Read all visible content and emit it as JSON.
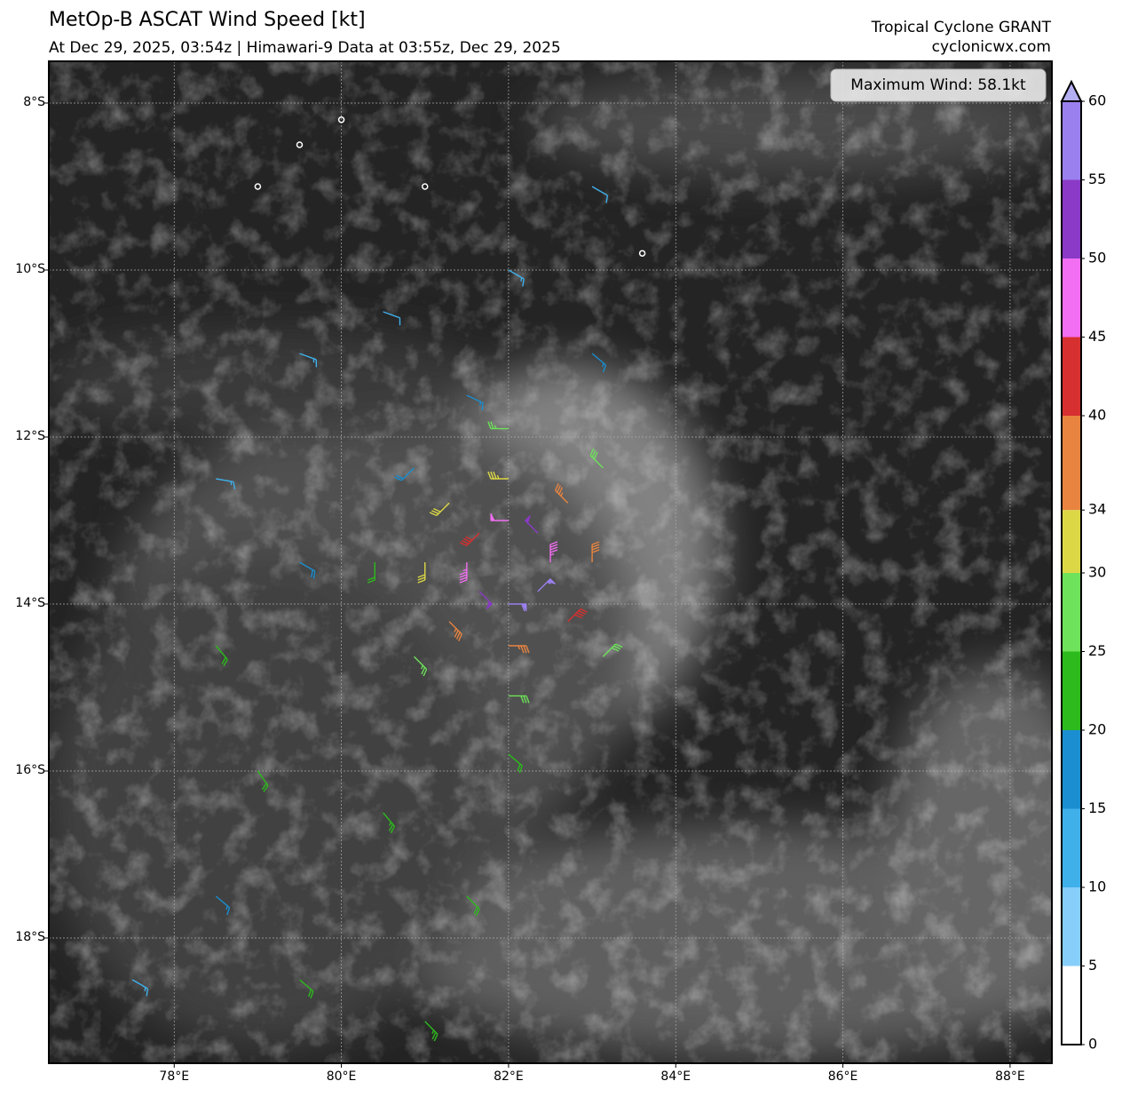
{
  "chart_data": {
    "type": "map",
    "title": "MetOp-B ASCAT Wind Speed [kt]",
    "subtitle": "At Dec 29, 2025, 03:54z | Himawari-9 Data at 03:55z, Dec 29, 2025",
    "storm_label": "Tropical Cyclone GRANT",
    "source_label": "cyclonicwx.com",
    "max_wind_label": "Maximum Wind: 58.1kt",
    "xlim": [
      76.5,
      88.5
    ],
    "ylim": [
      -19.5,
      -7.5
    ],
    "xticks": [
      {
        "value": 78,
        "label": "78°E"
      },
      {
        "value": 80,
        "label": "80°E"
      },
      {
        "value": 82,
        "label": "82°E"
      },
      {
        "value": 84,
        "label": "84°E"
      },
      {
        "value": 86,
        "label": "86°E"
      },
      {
        "value": 88,
        "label": "88°E"
      }
    ],
    "yticks": [
      {
        "value": -8,
        "label": "8°S"
      },
      {
        "value": -10,
        "label": "10°S"
      },
      {
        "value": -12,
        "label": "12°S"
      },
      {
        "value": -14,
        "label": "14°S"
      },
      {
        "value": -16,
        "label": "16°S"
      },
      {
        "value": -18,
        "label": "18°S"
      }
    ],
    "grid": true,
    "colorbar": {
      "bounds": [
        0,
        5,
        10,
        15,
        20,
        25,
        30,
        34,
        40,
        45,
        50,
        55,
        60
      ],
      "colors": [
        "#ffffff",
        "#87cefa",
        "#40b0ea",
        "#1a8ed0",
        "#2cba1c",
        "#6ee25a",
        "#dcd845",
        "#e8843f",
        "#d63030",
        "#f26ef2",
        "#8a3ac6",
        "#9a80ee"
      ],
      "extend_color": "#b4aef2",
      "ticks": [
        0,
        5,
        10,
        15,
        20,
        25,
        30,
        34,
        40,
        45,
        50,
        55,
        60
      ]
    },
    "wind": {
      "lon": [
        82.0,
        82.35,
        82.5,
        82.35,
        82.0,
        81.65,
        81.5,
        81.65,
        82.0,
        82.71,
        83.0,
        82.71,
        82.0,
        81.29,
        81.0,
        81.29,
        82.0,
        83.13,
        83.13,
        82.0,
        80.87,
        80.4,
        80.87,
        79.0,
        79.5,
        80.0,
        81.0,
        80.5,
        82.0,
        83.0,
        79.5,
        81.5,
        83.0,
        78.5,
        79.5,
        78.5,
        79.0,
        80.5,
        82.0,
        81.5,
        78.5,
        77.5,
        79.5,
        81.0,
        83.6
      ],
      "lat": [
        -13.0,
        -13.15,
        -13.5,
        -13.85,
        -14.0,
        -13.85,
        -13.5,
        -13.15,
        -12.5,
        -12.79,
        -13.5,
        -14.21,
        -14.5,
        -14.21,
        -13.5,
        -12.79,
        -11.9,
        -12.37,
        -14.63,
        -15.1,
        -14.63,
        -13.5,
        -12.37,
        -9.0,
        -8.5,
        -8.2,
        -9.0,
        -10.5,
        -10.0,
        -9.0,
        -11.0,
        -11.5,
        -11.0,
        -12.5,
        -13.5,
        -14.5,
        -16.0,
        -16.5,
        -15.8,
        -17.5,
        -17.5,
        -18.5,
        -18.5,
        -19.0,
        -9.8
      ],
      "speed": [
        48,
        52,
        45,
        55,
        58,
        50,
        46,
        42,
        33,
        36,
        38,
        40,
        37,
        35,
        32,
        30,
        26,
        28,
        29,
        28,
        27,
        22,
        18,
        3,
        3,
        2,
        4,
        12,
        14,
        12,
        13,
        15,
        16,
        14,
        18,
        20,
        22,
        24,
        22,
        20,
        16,
        14,
        22,
        24,
        3
      ],
      "direction": [
        270,
        315,
        0,
        45,
        90,
        135,
        180,
        225,
        270,
        315,
        0,
        45,
        90,
        135,
        180,
        225,
        270,
        315,
        45,
        90,
        135,
        180,
        225,
        0,
        0,
        0,
        0,
        110,
        120,
        120,
        110,
        115,
        130,
        100,
        120,
        140,
        145,
        140,
        130,
        135,
        130,
        120,
        130,
        135,
        0
      ]
    }
  }
}
